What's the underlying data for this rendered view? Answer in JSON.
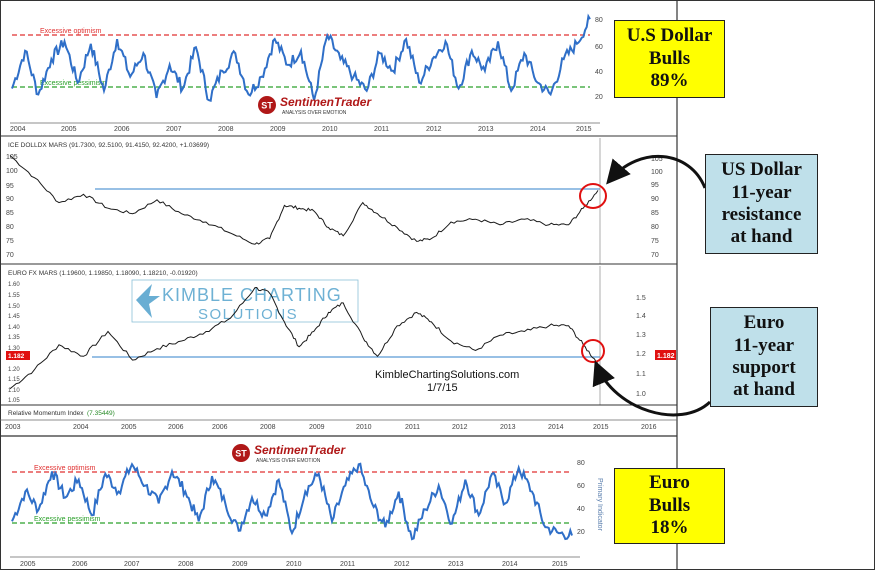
{
  "charts": {
    "top": {
      "label_high": "Excessive optimism",
      "label_low": "Excessive pessimism",
      "yticks": [
        "80",
        "60",
        "40",
        "20"
      ],
      "xticks": [
        "2004",
        "2005",
        "2006",
        "2007",
        "2008",
        "2009",
        "2010",
        "2011",
        "2012",
        "2013",
        "2014",
        "2015"
      ]
    },
    "dollar": {
      "header": "ICE DOLLDX MARS (91.7300, 92.5100, 91.4150, 92.4200, +1.03699)",
      "yticks": [
        "105",
        "100",
        "95",
        "90",
        "85",
        "80",
        "75",
        "70"
      ],
      "yticks_left": [
        "105",
        "100",
        "95",
        "90",
        "85",
        "80",
        "75",
        "70"
      ]
    },
    "euro": {
      "header": "EURO FX MARS (1.19600, 1.19850, 1.18090, 1.18210, -0.01920)",
      "yticks_right": [
        "1.5",
        "1.4",
        "1.3",
        "1.2",
        "1.1",
        "1.0"
      ],
      "yticks_left": [
        "1.60",
        "1.55",
        "1.50",
        "1.45",
        "1.40",
        "1.35",
        "1.30",
        "1.25",
        "1.20",
        "1.15",
        "1.10",
        "1.05"
      ],
      "last_price": "1.182",
      "left_badge": "1.182"
    },
    "rmi": {
      "header_name": "Relative Momentum Index",
      "header_value": "(7.35449)",
      "xticks": [
        "2003",
        "2004",
        "2005",
        "2006",
        "2006",
        "2008",
        "2009",
        "2010",
        "2011",
        "2012",
        "2013",
        "2014",
        "2015",
        "2016"
      ]
    },
    "bottom": {
      "label_high": "Excessive optimism",
      "label_low": "Excessive pessimism",
      "axis_title": "Primary Indicator",
      "yticks": [
        "80",
        "60",
        "40",
        "20"
      ],
      "xticks": [
        "2005",
        "2006",
        "2007",
        "2008",
        "2009",
        "2010",
        "2011",
        "2012",
        "2013",
        "2014",
        "2015"
      ]
    }
  },
  "watermarks": {
    "st_name": "SentimenTrader",
    "st_tagline": "ANALYSIS OVER EMOTION",
    "st_monogram": "ST",
    "kimble_line1": "KIMBLE CHARTING",
    "kimble_line2": "SOLUTIONS",
    "site": "KimbleChartingSolutions.com",
    "date": "1/7/15"
  },
  "callouts": {
    "usd_bulls": [
      "U.S Dollar",
      "Bulls",
      "89%"
    ],
    "usd_resistance": [
      "US Dollar",
      "11-year",
      "resistance",
      "at hand"
    ],
    "euro_support": [
      "Euro",
      "11-year",
      "support",
      "at hand"
    ],
    "euro_bulls": [
      "Euro",
      "Bulls",
      "18%"
    ]
  },
  "colors": {
    "sentiment_line": "#2f6fc8",
    "price_line": "#1a1a1a",
    "optimism_line": "#e03030",
    "pessimism_line": "#2aa02a",
    "level_line": "#5b9bd5",
    "circle": "#e01010",
    "callout_yellow": "#ffff00",
    "callout_blue": "#bfe0ea"
  },
  "chart_data": [
    {
      "type": "line",
      "title": "U.S. Dollar sentiment",
      "x": [
        2004,
        2004.25,
        2004.5,
        2004.75,
        2005,
        2005.25,
        2005.5,
        2005.75,
        2006,
        2006.25,
        2006.5,
        2006.75,
        2007,
        2007.25,
        2007.5,
        2007.75,
        2008,
        2008.25,
        2008.5,
        2008.75,
        2009,
        2009.25,
        2009.5,
        2009.75,
        2010,
        2010.25,
        2010.5,
        2010.75,
        2011,
        2011.25,
        2011.5,
        2011.75,
        2012,
        2012.25,
        2012.5,
        2012.75,
        2013,
        2013.25,
        2013.5,
        2013.75,
        2014,
        2014.25,
        2014.5,
        2014.75,
        2015
      ],
      "series": [
        {
          "values": [
            30,
            62,
            25,
            55,
            70,
            35,
            68,
            28,
            72,
            40,
            60,
            22,
            50,
            30,
            65,
            20,
            45,
            60,
            25,
            40,
            72,
            50,
            62,
            20,
            75,
            55,
            40,
            28,
            60,
            45,
            72,
            35,
            55,
            70,
            30,
            62,
            45,
            70,
            28,
            60,
            35,
            25,
            55,
            68,
            89
          ]
        }
      ],
      "ylim": [
        10,
        95
      ],
      "reference_lines": {
        "excessive_optimism": 69,
        "excessive_pessimism": 28
      }
    },
    {
      "type": "line",
      "title": "ICE Dollar Index",
      "x": [
        2003,
        2003.5,
        2004,
        2004.5,
        2005,
        2005.5,
        2006,
        2006.5,
        2007,
        2007.5,
        2008,
        2008.3,
        2008.6,
        2008.9,
        2009.2,
        2009.5,
        2009.8,
        2010.2,
        2010.5,
        2010.9,
        2011.3,
        2011.6,
        2012,
        2012.5,
        2013,
        2013.5,
        2014,
        2014.4,
        2014.7,
        2015
      ],
      "series": [
        {
          "values": [
            105,
            97,
            88,
            91,
            86,
            84,
            89,
            84,
            81,
            77,
            73,
            75,
            87,
            86,
            85,
            79,
            76,
            88,
            84,
            79,
            74,
            75,
            81,
            82,
            80,
            82,
            80,
            80,
            86,
            92.4
          ]
        }
      ],
      "ylim": [
        68,
        107
      ],
      "reference_lines": {
        "resistance": 92
      }
    },
    {
      "type": "line",
      "title": "Euro FX",
      "x": [
        2003,
        2003.5,
        2004,
        2004.5,
        2005,
        2005.5,
        2006,
        2006.5,
        2007,
        2007.5,
        2008,
        2008.3,
        2008.6,
        2008.9,
        2009.2,
        2009.5,
        2009.8,
        2010.2,
        2010.5,
        2010.9,
        2011.3,
        2011.6,
        2012,
        2012.5,
        2013,
        2013.5,
        2014,
        2014.4,
        2014.7,
        2015
      ],
      "series": [
        {
          "values": [
            1.05,
            1.15,
            1.28,
            1.22,
            1.35,
            1.2,
            1.26,
            1.3,
            1.35,
            1.42,
            1.58,
            1.55,
            1.4,
            1.27,
            1.35,
            1.45,
            1.5,
            1.32,
            1.22,
            1.38,
            1.45,
            1.4,
            1.3,
            1.25,
            1.33,
            1.35,
            1.38,
            1.38,
            1.28,
            1.182
          ]
        }
      ],
      "ylim": [
        0.98,
        1.62
      ],
      "reference_lines": {
        "support": 1.19
      }
    },
    {
      "type": "line",
      "title": "Euro sentiment",
      "x": [
        2004.5,
        2004.75,
        2005,
        2005.25,
        2005.5,
        2005.75,
        2006,
        2006.25,
        2006.5,
        2006.75,
        2007,
        2007.25,
        2007.5,
        2007.75,
        2008,
        2008.25,
        2008.5,
        2008.75,
        2009,
        2009.25,
        2009.5,
        2009.75,
        2010,
        2010.25,
        2010.5,
        2010.75,
        2011,
        2011.25,
        2011.5,
        2011.75,
        2012,
        2012.25,
        2012.5,
        2012.75,
        2013,
        2013.25,
        2013.5,
        2013.75,
        2014,
        2014.25,
        2014.5,
        2014.75,
        2015
      ],
      "series": [
        {
          "values": [
            30,
            55,
            40,
            72,
            50,
            65,
            35,
            70,
            55,
            78,
            60,
            45,
            72,
            55,
            30,
            68,
            45,
            22,
            50,
            35,
            65,
            20,
            55,
            70,
            30,
            60,
            78,
            45,
            25,
            55,
            15,
            40,
            60,
            28,
            65,
            35,
            70,
            45,
            75,
            55,
            25,
            20,
            18
          ]
        }
      ],
      "ylim": [
        10,
        90
      ],
      "reference_lines": {
        "excessive_optimism": 70,
        "excessive_pessimism": 28
      }
    }
  ]
}
